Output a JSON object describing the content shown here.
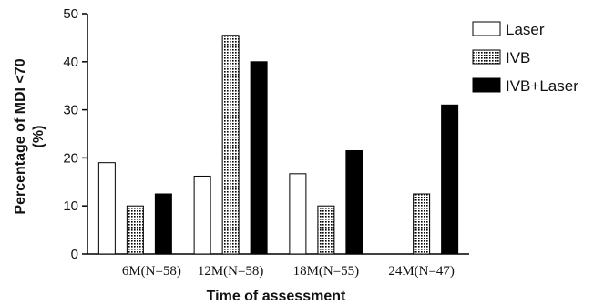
{
  "chart_data": {
    "type": "bar",
    "categories": [
      "6M(N=58)",
      "12M(N=58)",
      "18M(N=55)",
      "24M(N=47)"
    ],
    "series": [
      {
        "name": "Laser",
        "values": [
          19,
          16.2,
          16.7,
          null
        ],
        "pattern": "open",
        "color": "#ffffff"
      },
      {
        "name": "IVB",
        "values": [
          10,
          45.5,
          10,
          12.5
        ],
        "pattern": "dotted",
        "color": "#ffffff"
      },
      {
        "name": "IVB+Laser",
        "values": [
          12.5,
          40,
          21.5,
          31
        ],
        "pattern": "solid",
        "color": "#000000"
      }
    ],
    "xlabel": "Time of assessment",
    "ylabel_lines": [
      "Percentage of MDI <70",
      "(%)"
    ],
    "ylim": [
      0,
      50
    ],
    "yticks": [
      0,
      10,
      20,
      30,
      40,
      50
    ],
    "grid": false,
    "legend_position": "top-right"
  }
}
